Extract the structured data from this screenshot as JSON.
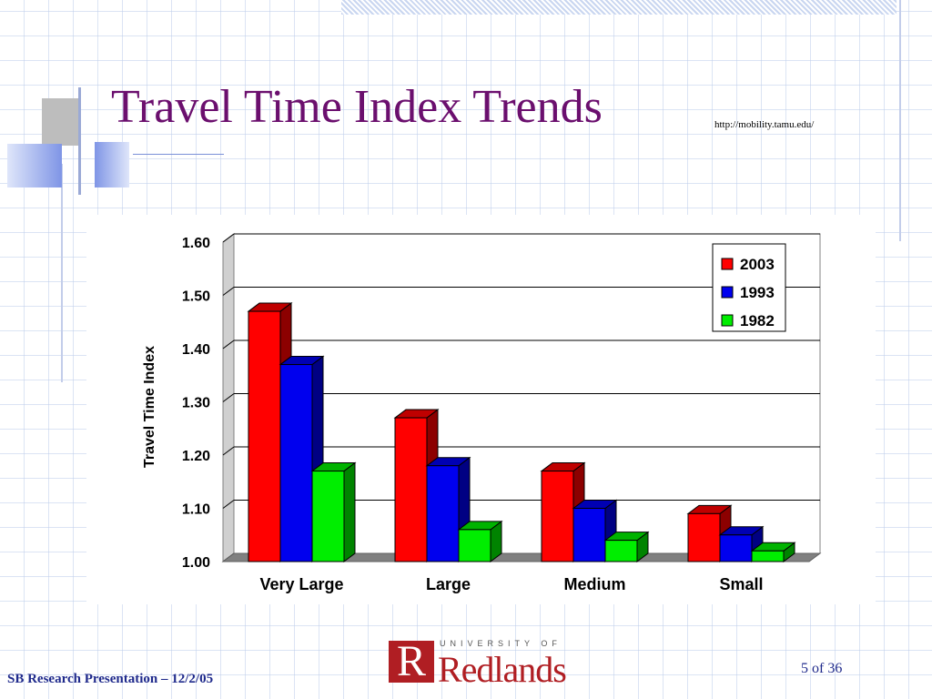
{
  "slide": {
    "title": "Travel Time Index Trends",
    "url": "http://mobility.tamu.edu/",
    "footer_left": "SB Research Presentation – 12/2/05",
    "page_number": "5 of 36",
    "logo": {
      "r": "R",
      "university_of": "UNIVERSITY OF",
      "name": "Redlands"
    }
  },
  "colors": {
    "title": "#6b0f6e",
    "footer": "#1f2a8c",
    "logo_red": "#b01e23"
  },
  "chart_data": {
    "type": "bar",
    "title": "",
    "xlabel": "",
    "ylabel": "Travel Time Index",
    "categories": [
      "Very Large",
      "Large",
      "Medium",
      "Small"
    ],
    "series": [
      {
        "name": "2003",
        "values": [
          1.47,
          1.27,
          1.17,
          1.09
        ],
        "color": "#ff0000"
      },
      {
        "name": "1993",
        "values": [
          1.37,
          1.18,
          1.1,
          1.05
        ],
        "color": "#0000ee"
      },
      {
        "name": "1982",
        "values": [
          1.17,
          1.06,
          1.04,
          1.02
        ],
        "color": "#00ee00"
      }
    ],
    "ylim": [
      1.0,
      1.6
    ],
    "yticks": [
      "1.00",
      "1.10",
      "1.20",
      "1.30",
      "1.40",
      "1.50",
      "1.60"
    ],
    "grid": true,
    "legend": "top-right",
    "style": "3d"
  }
}
